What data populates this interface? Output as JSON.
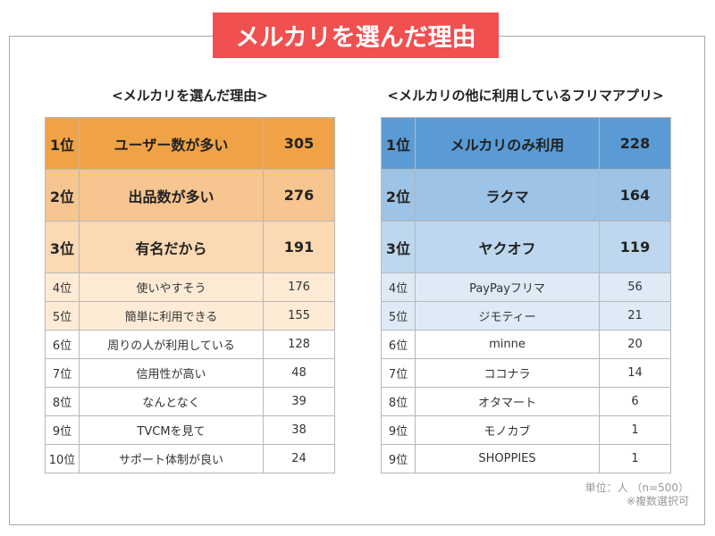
{
  "title": "メルカリを選んだ理由",
  "note_unit": "単位：人 （n=500）",
  "note_multi": "※複数選択可",
  "colors": {
    "title_bg": "#f05050",
    "orange": [
      "#f0a346",
      "#f6c590",
      "#fad9b3",
      "#fdebd6"
    ],
    "blue": [
      "#5b9bd5",
      "#9dc3e6",
      "#bdd7ee",
      "#deebf7"
    ]
  },
  "chart_data": [
    {
      "type": "table",
      "title": "<メルカリを選んだ理由>",
      "rows": [
        {
          "rank": "1位",
          "label": "ユーザー数が多い",
          "value": 305
        },
        {
          "rank": "2位",
          "label": "出品数が多い",
          "value": 276
        },
        {
          "rank": "3位",
          "label": "有名だから",
          "value": 191
        },
        {
          "rank": "4位",
          "label": "使いやすそう",
          "value": 176
        },
        {
          "rank": "5位",
          "label": "簡単に利用できる",
          "value": 155
        },
        {
          "rank": "6位",
          "label": "周りの人が利用している",
          "value": 128
        },
        {
          "rank": "7位",
          "label": "信用性が高い",
          "value": 48
        },
        {
          "rank": "8位",
          "label": "なんとなく",
          "value": 39
        },
        {
          "rank": "9位",
          "label": "TVCMを見て",
          "value": 38
        },
        {
          "rank": "10位",
          "label": "サポート体制が良い",
          "value": 24
        }
      ]
    },
    {
      "type": "table",
      "title": "<メルカリの他に利用しているフリマアプリ>",
      "rows": [
        {
          "rank": "1位",
          "label": "メルカリのみ利用",
          "value": 228
        },
        {
          "rank": "2位",
          "label": "ラクマ",
          "value": 164
        },
        {
          "rank": "3位",
          "label": "ヤクオフ",
          "value": 119
        },
        {
          "rank": "4位",
          "label": "PayPayフリマ",
          "value": 56
        },
        {
          "rank": "5位",
          "label": "ジモティー",
          "value": 21
        },
        {
          "rank": "6位",
          "label": "minne",
          "value": 20
        },
        {
          "rank": "7位",
          "label": "ココナラ",
          "value": 14
        },
        {
          "rank": "8位",
          "label": "オタマート",
          "value": 6
        },
        {
          "rank": "9位",
          "label": "モノカブ",
          "value": 1
        },
        {
          "rank": "9位",
          "label": "SHOPPIES",
          "value": 1
        }
      ]
    }
  ]
}
